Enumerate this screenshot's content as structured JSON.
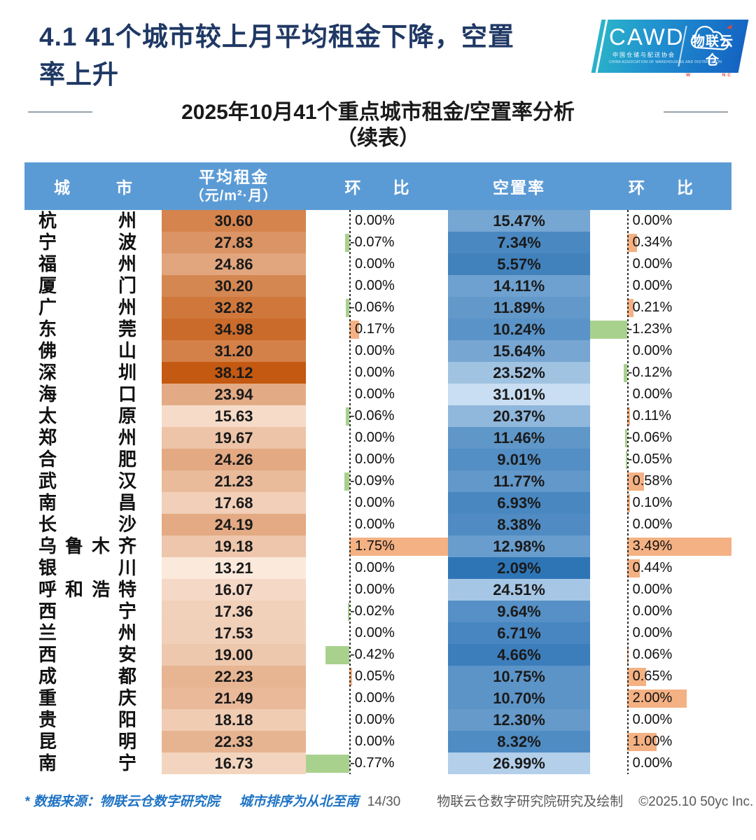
{
  "title": {
    "line1": "4.1 41个城市较上月平均租金下降，空置",
    "line2": "率上升"
  },
  "logo": {
    "cawd": "CAWD",
    "cawd_sub": "中国仓储与配送协会",
    "cawd_sub_en": "CHINA ASSOCIATION OF WAREHOUSING AND DISTRIBUTION",
    "brand": "物联云仓",
    "brand_sub_parts": [
      {
        "t": "W",
        "hl": true
      },
      {
        "t": "AREHOUSE ",
        "hl": false
      },
      {
        "t": "I",
        "hl": false
      },
      {
        "t": "N",
        "hl": true
      },
      {
        "t": " ",
        "hl": false
      },
      {
        "t": "C",
        "hl": true
      },
      {
        "t": "LOUD",
        "hl": false
      }
    ]
  },
  "subtitle": {
    "line1": "2025年10月41个重点城市租金/空置率分析",
    "line2": "（续表）"
  },
  "table": {
    "headers": {
      "city": "城市",
      "rent": "平均租金",
      "rent_unit": "（元/m²·月）",
      "mom1": "环比",
      "vacancy": "空置率",
      "mom2": "环比"
    },
    "rows": [
      {
        "city": "杭州",
        "rent": "30.60",
        "rent_mom": "0.00%",
        "vacancy": "15.47%",
        "vacancy_mom": "0.00%"
      },
      {
        "city": "宁波",
        "rent": "27.83",
        "rent_mom": "-0.07%",
        "vacancy": "7.34%",
        "vacancy_mom": "0.34%"
      },
      {
        "city": "福州",
        "rent": "24.86",
        "rent_mom": "0.00%",
        "vacancy": "5.57%",
        "vacancy_mom": "0.00%"
      },
      {
        "city": "厦门",
        "rent": "30.20",
        "rent_mom": "0.00%",
        "vacancy": "14.11%",
        "vacancy_mom": "0.00%"
      },
      {
        "city": "广州",
        "rent": "32.82",
        "rent_mom": "-0.06%",
        "vacancy": "11.89%",
        "vacancy_mom": "0.21%"
      },
      {
        "city": "东莞",
        "rent": "34.98",
        "rent_mom": "0.17%",
        "vacancy": "10.24%",
        "vacancy_mom": "-1.23%"
      },
      {
        "city": "佛山",
        "rent": "31.20",
        "rent_mom": "0.00%",
        "vacancy": "15.64%",
        "vacancy_mom": "0.00%"
      },
      {
        "city": "深圳",
        "rent": "38.12",
        "rent_mom": "0.00%",
        "vacancy": "23.52%",
        "vacancy_mom": "-0.12%"
      },
      {
        "city": "海口",
        "rent": "23.94",
        "rent_mom": "0.00%",
        "vacancy": "31.01%",
        "vacancy_mom": "0.00%"
      },
      {
        "city": "太原",
        "rent": "15.63",
        "rent_mom": "-0.06%",
        "vacancy": "20.37%",
        "vacancy_mom": "0.11%"
      },
      {
        "city": "郑州",
        "rent": "19.67",
        "rent_mom": "0.00%",
        "vacancy": "11.46%",
        "vacancy_mom": "-0.06%"
      },
      {
        "city": "合肥",
        "rent": "24.26",
        "rent_mom": "0.00%",
        "vacancy": "9.01%",
        "vacancy_mom": "-0.05%"
      },
      {
        "city": "武汉",
        "rent": "21.23",
        "rent_mom": "-0.09%",
        "vacancy": "11.77%",
        "vacancy_mom": "0.58%"
      },
      {
        "city": "南昌",
        "rent": "17.68",
        "rent_mom": "0.00%",
        "vacancy": "6.93%",
        "vacancy_mom": "0.10%"
      },
      {
        "city": "长沙",
        "rent": "24.19",
        "rent_mom": "0.00%",
        "vacancy": "8.38%",
        "vacancy_mom": "0.00%"
      },
      {
        "city": "乌鲁木齐",
        "rent": "19.18",
        "rent_mom": "1.75%",
        "vacancy": "12.98%",
        "vacancy_mom": "3.49%"
      },
      {
        "city": "银川",
        "rent": "13.21",
        "rent_mom": "0.00%",
        "vacancy": "2.09%",
        "vacancy_mom": "0.44%"
      },
      {
        "city": "呼和浩特",
        "rent": "16.07",
        "rent_mom": "0.00%",
        "vacancy": "24.51%",
        "vacancy_mom": "0.00%"
      },
      {
        "city": "西宁",
        "rent": "17.36",
        "rent_mom": "-0.02%",
        "vacancy": "9.64%",
        "vacancy_mom": "0.00%"
      },
      {
        "city": "兰州",
        "rent": "17.53",
        "rent_mom": "0.00%",
        "vacancy": "6.71%",
        "vacancy_mom": "0.00%"
      },
      {
        "city": "西安",
        "rent": "19.00",
        "rent_mom": "-0.42%",
        "vacancy": "4.66%",
        "vacancy_mom": "0.06%"
      },
      {
        "city": "成都",
        "rent": "22.23",
        "rent_mom": "0.05%",
        "vacancy": "10.75%",
        "vacancy_mom": "0.65%"
      },
      {
        "city": "重庆",
        "rent": "21.49",
        "rent_mom": "0.00%",
        "vacancy": "10.70%",
        "vacancy_mom": "2.00%"
      },
      {
        "city": "贵阳",
        "rent": "18.18",
        "rent_mom": "0.00%",
        "vacancy": "12.30%",
        "vacancy_mom": "0.00%"
      },
      {
        "city": "昆明",
        "rent": "22.33",
        "rent_mom": "0.00%",
        "vacancy": "8.32%",
        "vacancy_mom": "1.00%"
      },
      {
        "city": "南宁",
        "rent": "16.73",
        "rent_mom": "-0.77%",
        "vacancy": "26.99%",
        "vacancy_mom": "0.00%"
      }
    ]
  },
  "formats": {
    "header_bg": "#5B9BD5",
    "title_color": "#1F3864",
    "rent_scale": {
      "min": 13.21,
      "max": 38.12,
      "min_color": "#FBE9DC",
      "max_color": "#C45911"
    },
    "vacancy_scale": {
      "min": 2.09,
      "max": 31.01,
      "min_color": "#2E75B6",
      "max_color": "#C9DEF2"
    },
    "bar_negative_color": "#A9D18E",
    "bar_positive_color": "#F4B183",
    "logo_accent": "#E8453C"
  },
  "footer": {
    "source_note": "* 数据来源：物联云仓数字研究院",
    "order_note": "城市排序为从北至南",
    "page_number": "14/30",
    "credit": "物联云仓数字研究院研究及绘制",
    "copyright": "©2025.10 50yc Inc."
  }
}
